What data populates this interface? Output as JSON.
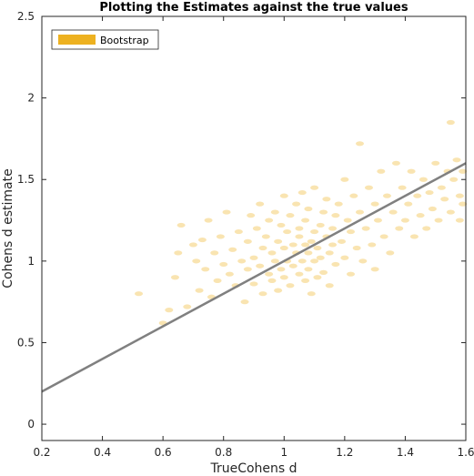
{
  "chart_data": {
    "type": "scatter",
    "title": "Plotting the Estimates against the true values",
    "xlabel": "TrueCohens d",
    "ylabel": "Cohens d estimate",
    "xlim": [
      0.2,
      1.6
    ],
    "ylim": [
      -0.1,
      2.5
    ],
    "xticks": [
      "0.2",
      "0.4",
      "0.6",
      "0.8",
      "1",
      "1.2",
      "1.4",
      "1.6"
    ],
    "yticks": [
      "0",
      "0.5",
      "1",
      "1.5",
      "2",
      "2.5"
    ],
    "grid": false,
    "legend": {
      "position": "top-left",
      "entries": [
        "Bootstrap"
      ]
    },
    "colors": {
      "points": "#EDB120",
      "line": "#808080",
      "axis": "#262626"
    },
    "series": [
      {
        "name": "Bootstrap",
        "points": [
          [
            0.52,
            0.8
          ],
          [
            0.6,
            0.62
          ],
          [
            0.62,
            0.7
          ],
          [
            0.64,
            0.9
          ],
          [
            0.65,
            1.05
          ],
          [
            0.66,
            1.22
          ],
          [
            0.68,
            0.72
          ],
          [
            0.7,
            1.1
          ],
          [
            0.71,
            1.0
          ],
          [
            0.72,
            0.82
          ],
          [
            0.73,
            1.13
          ],
          [
            0.74,
            0.95
          ],
          [
            0.75,
            1.25
          ],
          [
            0.76,
            0.78
          ],
          [
            0.77,
            1.05
          ],
          [
            0.78,
            0.88
          ],
          [
            0.79,
            1.15
          ],
          [
            0.8,
            0.98
          ],
          [
            0.81,
            1.3
          ],
          [
            0.82,
            0.92
          ],
          [
            0.83,
            1.07
          ],
          [
            0.84,
            0.85
          ],
          [
            0.85,
            1.18
          ],
          [
            0.86,
            1.0
          ],
          [
            0.87,
            0.75
          ],
          [
            0.88,
            1.12
          ],
          [
            0.88,
            0.95
          ],
          [
            0.89,
            1.28
          ],
          [
            0.9,
            1.02
          ],
          [
            0.9,
            0.86
          ],
          [
            0.91,
            1.2
          ],
          [
            0.92,
            0.97
          ],
          [
            0.92,
            1.35
          ],
          [
            0.93,
            1.08
          ],
          [
            0.93,
            0.8
          ],
          [
            0.94,
            1.15
          ],
          [
            0.95,
            0.92
          ],
          [
            0.95,
            1.25
          ],
          [
            0.96,
            1.05
          ],
          [
            0.96,
            0.88
          ],
          [
            0.97,
            1.3
          ],
          [
            0.97,
            1.0
          ],
          [
            0.98,
            1.12
          ],
          [
            0.98,
            0.82
          ],
          [
            0.99,
            1.22
          ],
          [
            0.99,
            0.95
          ],
          [
            1.0,
            1.08
          ],
          [
            1.0,
            1.4
          ],
          [
            1.0,
            0.9
          ],
          [
            1.01,
            1.18
          ],
          [
            1.01,
            1.0
          ],
          [
            1.02,
            1.28
          ],
          [
            1.02,
            0.85
          ],
          [
            1.03,
            1.1
          ],
          [
            1.03,
            0.97
          ],
          [
            1.04,
            1.35
          ],
          [
            1.04,
            1.05
          ],
          [
            1.05,
            1.2
          ],
          [
            1.05,
            0.92
          ],
          [
            1.05,
            1.15
          ],
          [
            1.06,
            1.0
          ],
          [
            1.06,
            1.42
          ],
          [
            1.07,
            1.1
          ],
          [
            1.07,
            0.88
          ],
          [
            1.07,
            1.25
          ],
          [
            1.08,
            1.05
          ],
          [
            1.08,
            0.95
          ],
          [
            1.08,
            1.32
          ],
          [
            1.09,
            1.12
          ],
          [
            1.09,
            0.8
          ],
          [
            1.1,
            1.18
          ],
          [
            1.1,
            1.0
          ],
          [
            1.1,
            1.45
          ],
          [
            1.11,
            1.08
          ],
          [
            1.11,
            0.9
          ],
          [
            1.12,
            1.22
          ],
          [
            1.12,
            1.02
          ],
          [
            1.13,
            1.3
          ],
          [
            1.13,
            0.93
          ],
          [
            1.14,
            1.15
          ],
          [
            1.14,
            1.38
          ],
          [
            1.15,
            1.05
          ],
          [
            1.15,
            0.85
          ],
          [
            1.16,
            1.2
          ],
          [
            1.16,
            1.1
          ],
          [
            1.17,
            1.28
          ],
          [
            1.17,
            0.98
          ],
          [
            1.18,
            1.35
          ],
          [
            1.19,
            1.12
          ],
          [
            1.2,
            1.5
          ],
          [
            1.2,
            1.02
          ],
          [
            1.21,
            1.25
          ],
          [
            1.22,
            0.92
          ],
          [
            1.22,
            1.18
          ],
          [
            1.23,
            1.4
          ],
          [
            1.24,
            1.08
          ],
          [
            1.25,
            1.72
          ],
          [
            1.25,
            1.3
          ],
          [
            1.26,
            1.0
          ],
          [
            1.27,
            1.2
          ],
          [
            1.28,
            1.45
          ],
          [
            1.29,
            1.1
          ],
          [
            1.3,
            1.35
          ],
          [
            1.3,
            0.95
          ],
          [
            1.31,
            1.25
          ],
          [
            1.32,
            1.55
          ],
          [
            1.33,
            1.15
          ],
          [
            1.34,
            1.4
          ],
          [
            1.35,
            1.05
          ],
          [
            1.36,
            1.3
          ],
          [
            1.37,
            1.6
          ],
          [
            1.38,
            1.2
          ],
          [
            1.39,
            1.45
          ],
          [
            1.4,
            1.25
          ],
          [
            1.41,
            1.35
          ],
          [
            1.42,
            1.55
          ],
          [
            1.43,
            1.15
          ],
          [
            1.44,
            1.4
          ],
          [
            1.45,
            1.28
          ],
          [
            1.46,
            1.5
          ],
          [
            1.47,
            1.2
          ],
          [
            1.48,
            1.42
          ],
          [
            1.49,
            1.32
          ],
          [
            1.5,
            1.6
          ],
          [
            1.51,
            1.25
          ],
          [
            1.52,
            1.45
          ],
          [
            1.53,
            1.38
          ],
          [
            1.54,
            1.55
          ],
          [
            1.55,
            1.3
          ],
          [
            1.55,
            1.85
          ],
          [
            1.56,
            1.5
          ],
          [
            1.57,
            1.62
          ],
          [
            1.58,
            1.4
          ],
          [
            1.58,
            1.25
          ],
          [
            1.59,
            1.55
          ],
          [
            1.59,
            1.35
          ]
        ]
      }
    ],
    "reference_line": {
      "from": [
        0.2,
        0.2
      ],
      "to": [
        1.6,
        1.6
      ]
    }
  }
}
